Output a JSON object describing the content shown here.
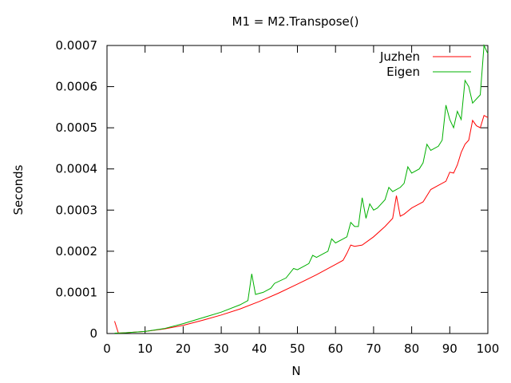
{
  "chart_data": {
    "type": "line",
    "title": "M1 = M2.Transpose()",
    "xlabel": "N",
    "ylabel": "Seconds",
    "xlim": [
      0,
      100
    ],
    "ylim": [
      0,
      0.0007
    ],
    "x_ticks": [
      "0",
      "10",
      "20",
      "30",
      "40",
      "50",
      "60",
      "70",
      "80",
      "90",
      "100"
    ],
    "y_ticks": [
      "0",
      "0.0001",
      "0.0002",
      "0.0003",
      "0.0004",
      "0.0005",
      "0.0006",
      "0.0007"
    ],
    "grid": false,
    "legend_position": "top-right",
    "series": [
      {
        "name": "Juzhen",
        "color": "#ff0000",
        "points": [
          [
            2,
            3e-05
          ],
          [
            3,
            1e-06
          ],
          [
            5,
            2e-06
          ],
          [
            10,
            5e-06
          ],
          [
            15,
            1.1e-05
          ],
          [
            20,
            2e-05
          ],
          [
            25,
            3.2e-05
          ],
          [
            30,
            4.5e-05
          ],
          [
            35,
            6e-05
          ],
          [
            40,
            7.8e-05
          ],
          [
            45,
            9.8e-05
          ],
          [
            50,
            0.00012
          ],
          [
            55,
            0.000143
          ],
          [
            60,
            0.000168
          ],
          [
            62,
            0.000178
          ],
          [
            63,
            0.000195
          ],
          [
            64,
            0.000215
          ],
          [
            65,
            0.000212
          ],
          [
            67,
            0.000215
          ],
          [
            70,
            0.000235
          ],
          [
            73,
            0.00026
          ],
          [
            75,
            0.00028
          ],
          [
            76,
            0.000335
          ],
          [
            77,
            0.000285
          ],
          [
            78,
            0.00029
          ],
          [
            80,
            0.000305
          ],
          [
            83,
            0.00032
          ],
          [
            85,
            0.00035
          ],
          [
            87,
            0.00036
          ],
          [
            89,
            0.00037
          ],
          [
            90,
            0.000392
          ],
          [
            91,
            0.00039
          ],
          [
            92,
            0.00041
          ],
          [
            93,
            0.00044
          ],
          [
            94,
            0.00046
          ],
          [
            95,
            0.00047
          ],
          [
            96,
            0.000518
          ],
          [
            97,
            0.000505
          ],
          [
            98,
            0.0005
          ],
          [
            99,
            0.00053
          ],
          [
            100,
            0.000525
          ]
        ]
      },
      {
        "name": "Eigen",
        "color": "#00b000",
        "points": [
          [
            2,
            1e-06
          ],
          [
            5,
            2e-06
          ],
          [
            10,
            5e-06
          ],
          [
            15,
            1.2e-05
          ],
          [
            20,
            2.4e-05
          ],
          [
            25,
            3.8e-05
          ],
          [
            30,
            5.2e-05
          ],
          [
            35,
            7e-05
          ],
          [
            37,
            8e-05
          ],
          [
            38,
            0.000145
          ],
          [
            39,
            9.5e-05
          ],
          [
            41,
            0.0001
          ],
          [
            43,
            0.00011
          ],
          [
            44,
            0.000122
          ],
          [
            47,
            0.000135
          ],
          [
            49,
            0.000158
          ],
          [
            50,
            0.000155
          ],
          [
            52,
            0.000165
          ],
          [
            53,
            0.00017
          ],
          [
            54,
            0.00019
          ],
          [
            55,
            0.000185
          ],
          [
            57,
            0.000195
          ],
          [
            58,
            0.0002
          ],
          [
            59,
            0.00023
          ],
          [
            60,
            0.00022
          ],
          [
            62,
            0.00023
          ],
          [
            63,
            0.000235
          ],
          [
            64,
            0.00027
          ],
          [
            65,
            0.00026
          ],
          [
            66,
            0.00026
          ],
          [
            67,
            0.00033
          ],
          [
            68,
            0.00028
          ],
          [
            69,
            0.000315
          ],
          [
            70,
            0.0003
          ],
          [
            71,
            0.000305
          ],
          [
            73,
            0.000325
          ],
          [
            74,
            0.000355
          ],
          [
            75,
            0.000345
          ],
          [
            77,
            0.000355
          ],
          [
            78,
            0.000365
          ],
          [
            79,
            0.000405
          ],
          [
            80,
            0.00039
          ],
          [
            82,
            0.0004
          ],
          [
            83,
            0.000415
          ],
          [
            84,
            0.00046
          ],
          [
            85,
            0.000445
          ],
          [
            87,
            0.000455
          ],
          [
            88,
            0.00047
          ],
          [
            89,
            0.000555
          ],
          [
            90,
            0.00052
          ],
          [
            91,
            0.0005
          ],
          [
            92,
            0.00054
          ],
          [
            93,
            0.00052
          ],
          [
            94,
            0.000615
          ],
          [
            95,
            0.0006
          ],
          [
            96,
            0.00056
          ],
          [
            98,
            0.00058
          ],
          [
            99,
            0.0007
          ],
          [
            100,
            0.00068
          ]
        ]
      }
    ]
  }
}
